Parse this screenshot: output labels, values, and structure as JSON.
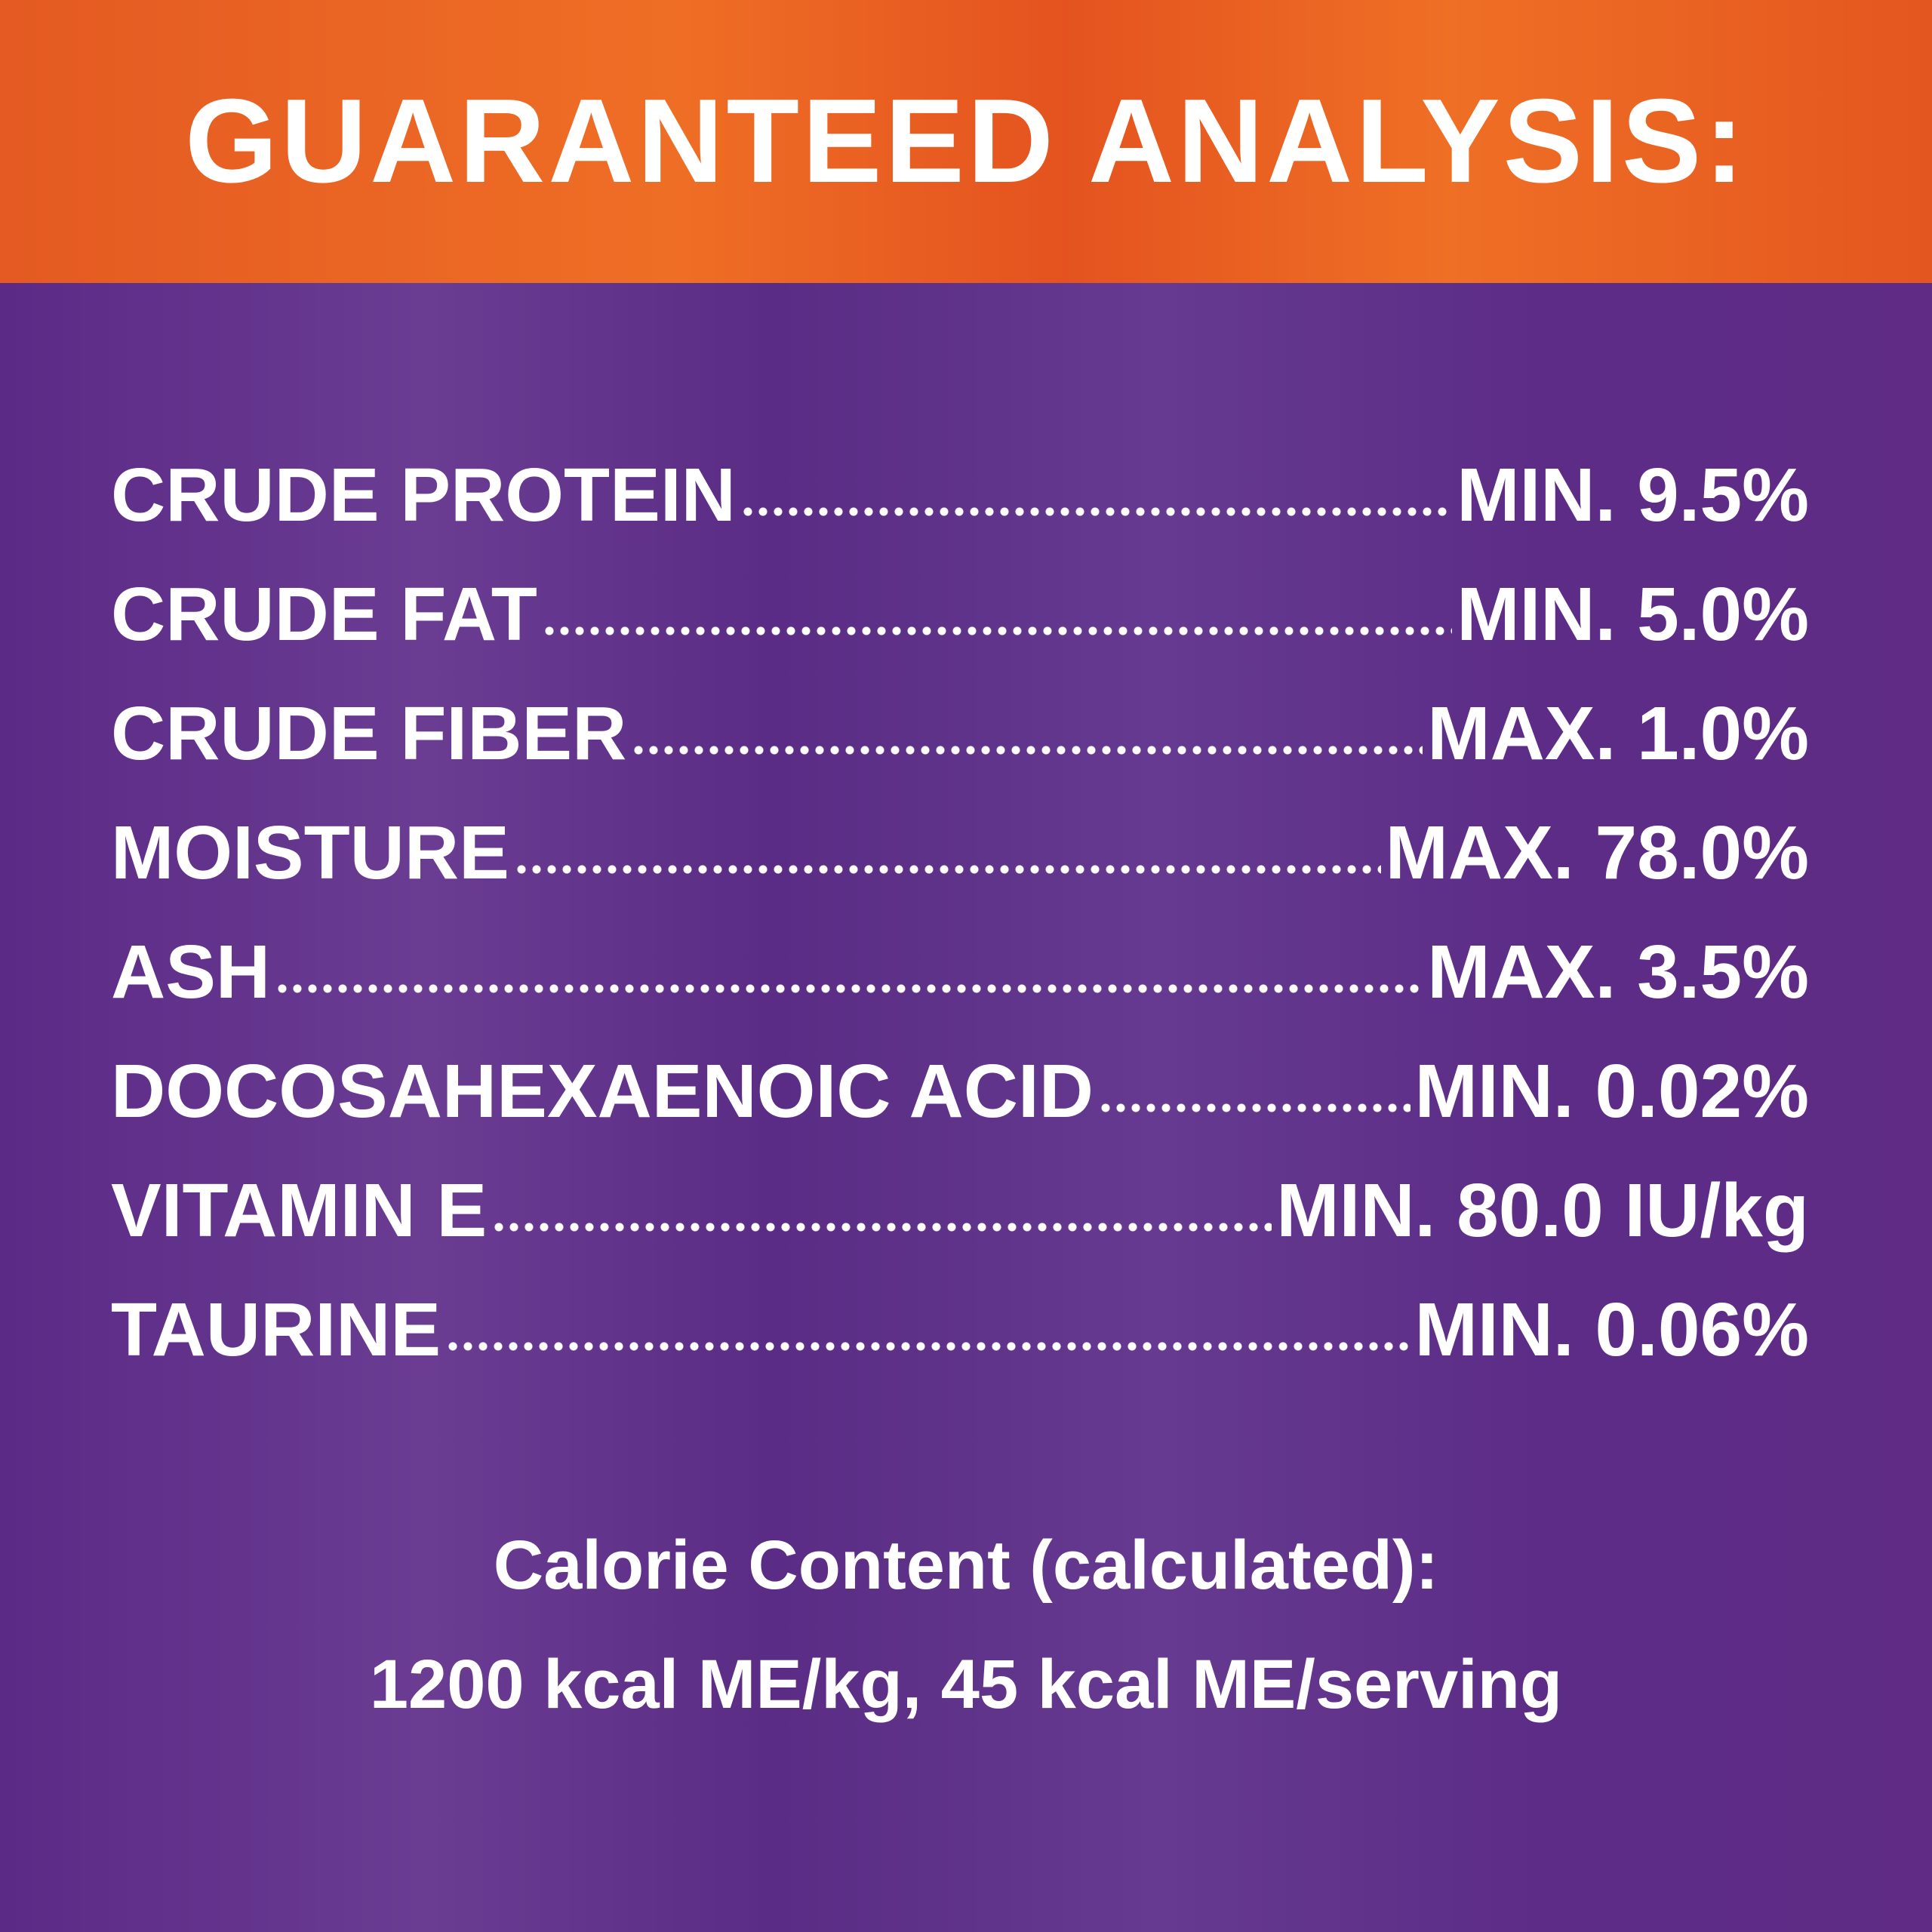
{
  "header": {
    "title": "GUARANTEED ANALYSIS:"
  },
  "analysis": {
    "rows": [
      {
        "label": "CRUDE PROTEIN",
        "value": "MIN. 9.5%"
      },
      {
        "label": "CRUDE FAT",
        "value": "MIN. 5.0%"
      },
      {
        "label": "CRUDE FIBER",
        "value": "MAX. 1.0%"
      },
      {
        "label": "MOISTURE",
        "value": "MAX. 78.0%"
      },
      {
        "label": "ASH",
        "value": "MAX. 3.5%"
      },
      {
        "label": "DOCOSAHEXAENOIC ACID",
        "value": "MIN. 0.02%"
      },
      {
        "label": "VITAMIN E",
        "value": "MIN. 80.0 IU/kg"
      },
      {
        "label": "TAURINE",
        "value": "MIN. 0.06%"
      }
    ]
  },
  "calorie": {
    "heading": "Calorie Content (calculated):",
    "text": "1200 kcal ME/kg, 45 kcal ME/serving"
  }
}
